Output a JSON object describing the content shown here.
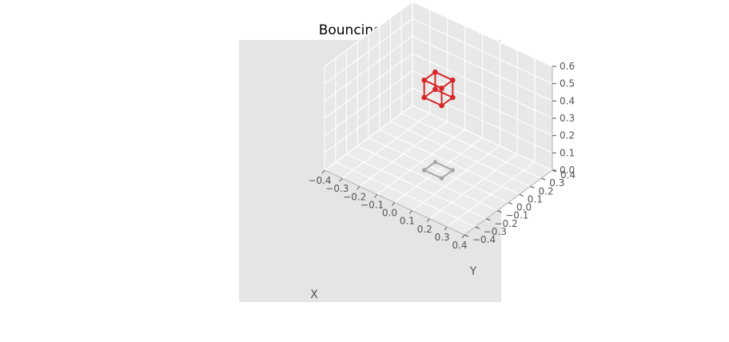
{
  "chart_data": {
    "type": "scatter3d",
    "title": "Bouncing Cube",
    "xlabel": "X",
    "ylabel": "Y",
    "zlabel": "",
    "xlim": [
      -0.4,
      0.4
    ],
    "ylim": [
      -0.4,
      0.4
    ],
    "zlim": [
      0.0,
      0.6
    ],
    "grid": true,
    "xticks": [
      "−0.4",
      "−0.3",
      "−0.2",
      "−0.1",
      "0.0",
      "0.1",
      "0.2",
      "0.3",
      "0.4"
    ],
    "yticks": [
      "−0.4",
      "−0.3",
      "−0.2",
      "−0.1",
      "0.0",
      "0.1",
      "0.2",
      "0.3",
      "0.4"
    ],
    "zticks": [
      "0.0",
      "0.1",
      "0.2",
      "0.3",
      "0.4",
      "0.5",
      "0.6"
    ],
    "colors": {
      "cube": "#d62728",
      "shadow": "#a3a3a3",
      "panel": "#e5e5e5",
      "grid": "#ffffff",
      "text": "#555555"
    },
    "series": [
      {
        "type": "cube",
        "x": [
          -0.05,
          0.05,
          0.05,
          -0.05,
          -0.05,
          0.05,
          0.05,
          -0.05
        ],
        "y": [
          -0.05,
          -0.05,
          0.05,
          0.05,
          -0.05,
          -0.05,
          0.05,
          0.05
        ],
        "z": [
          0.42,
          0.42,
          0.42,
          0.42,
          0.52,
          0.52,
          0.52,
          0.52
        ],
        "edges": [
          [
            0,
            1
          ],
          [
            1,
            2
          ],
          [
            2,
            3
          ],
          [
            3,
            0
          ],
          [
            4,
            5
          ],
          [
            5,
            6
          ],
          [
            6,
            7
          ],
          [
            7,
            4
          ],
          [
            0,
            4
          ],
          [
            1,
            5
          ],
          [
            2,
            6
          ],
          [
            3,
            7
          ]
        ]
      },
      {
        "type": "shadow",
        "x": [
          -0.05,
          0.05,
          0.05,
          -0.05
        ],
        "y": [
          -0.05,
          -0.05,
          0.05,
          0.05
        ],
        "z": [
          0,
          0,
          0,
          0
        ],
        "edges": [
          [
            0,
            1
          ],
          [
            1,
            2
          ],
          [
            2,
            3
          ],
          [
            3,
            0
          ]
        ]
      }
    ]
  }
}
